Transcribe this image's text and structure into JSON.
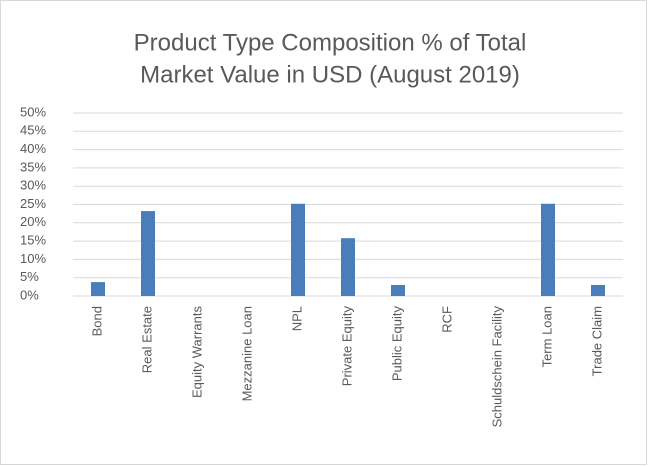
{
  "chart_data": {
    "type": "bar",
    "title": [
      "Product Type Composition % of Total",
      "Market Value in USD (August 2019)"
    ],
    "categories": [
      "Bond",
      "Real Estate",
      "Equity Warrants",
      "Mezzanine Loan",
      "NPL",
      "Private Equity",
      "Public Equity",
      "RCF",
      "Schuldschein Facility",
      "Term Loan",
      "Trade Claim"
    ],
    "values": [
      3.8,
      23.2,
      0,
      0,
      25.2,
      15.8,
      3.0,
      0,
      0,
      25.2,
      3.0
    ],
    "color": "#4a7ebb",
    "ylim": [
      0,
      50
    ],
    "yticks": [
      {
        "value": 0,
        "label": "0%"
      },
      {
        "value": 5,
        "label": "5%"
      },
      {
        "value": 10,
        "label": "10%"
      },
      {
        "value": 15,
        "label": "15%"
      },
      {
        "value": 20,
        "label": "20%"
      },
      {
        "value": 25,
        "label": "25%"
      },
      {
        "value": 30,
        "label": "30%"
      },
      {
        "value": 35,
        "label": "35%"
      },
      {
        "value": 40,
        "label": "40%"
      },
      {
        "value": 45,
        "label": "45%"
      },
      {
        "value": 50,
        "label": "50%"
      }
    ],
    "grid": true
  }
}
